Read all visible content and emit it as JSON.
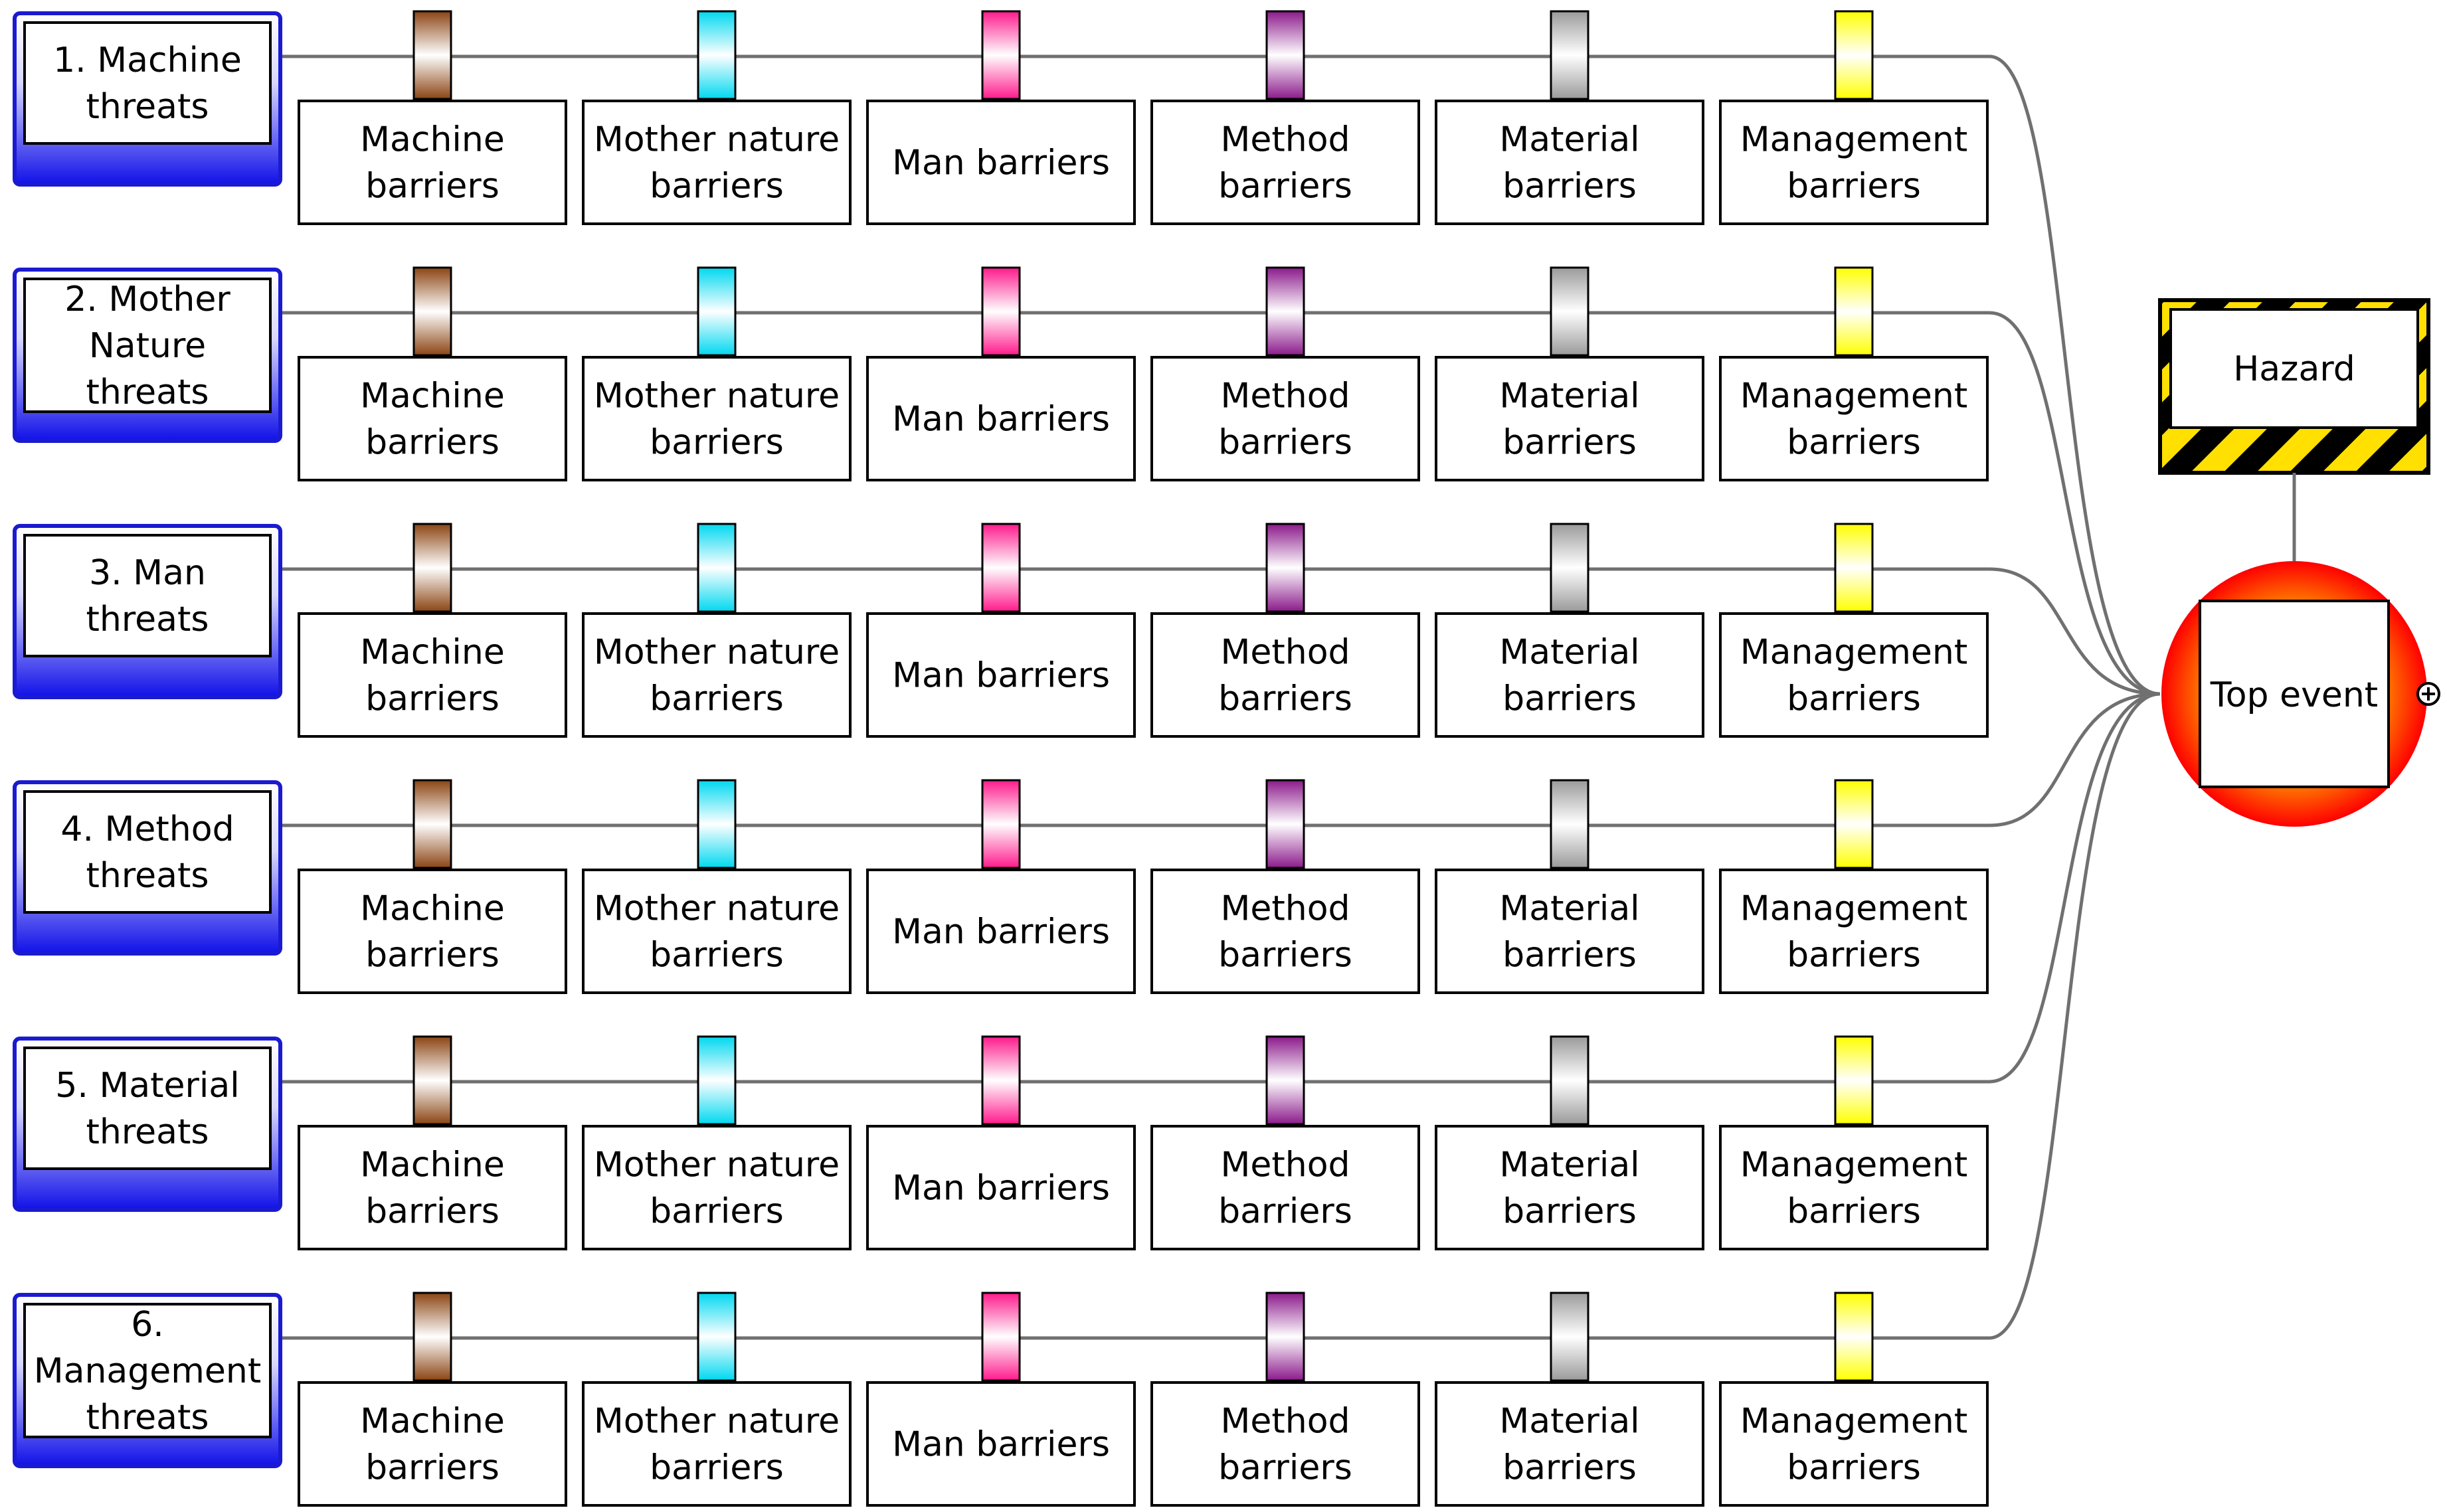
{
  "threats": [
    {
      "label_lines": [
        "1. Machine",
        "threats"
      ]
    },
    {
      "label_lines": [
        "2. Mother",
        "Nature",
        "threats"
      ]
    },
    {
      "label_lines": [
        "3. Man",
        "threats"
      ]
    },
    {
      "label_lines": [
        "4. Method",
        "threats"
      ]
    },
    {
      "label_lines": [
        "5. Material",
        "threats"
      ]
    },
    {
      "label_lines": [
        "6.",
        "Management",
        "threats"
      ]
    }
  ],
  "barriers": [
    {
      "label_lines": [
        "Machine",
        "barriers"
      ],
      "color": "#8B4513"
    },
    {
      "label_lines": [
        "Mother nature",
        "barriers"
      ],
      "color": "#00D8F0"
    },
    {
      "label_lines": [
        "Man barriers"
      ],
      "color": "#FF1A8C"
    },
    {
      "label_lines": [
        "Method",
        "barriers"
      ],
      "color": "#8B1A8B"
    },
    {
      "label_lines": [
        "Material",
        "barriers"
      ],
      "color": "#9A9A9A"
    },
    {
      "label_lines": [
        "Management",
        "barriers"
      ],
      "color": "#FFFF00"
    }
  ],
  "hazard": {
    "label": "Hazard",
    "stripe_colors": [
      "#000000",
      "#FFE000"
    ]
  },
  "top_event": {
    "label": "Top event",
    "fill_outer": "#FF0000",
    "fill_inner": "#FFB000"
  },
  "colors": {
    "threat_border": "#1A1AD0",
    "threat_fill": "#1010E8",
    "connector": "#707070"
  },
  "icons": {
    "expand": "plus-circle-icon"
  }
}
